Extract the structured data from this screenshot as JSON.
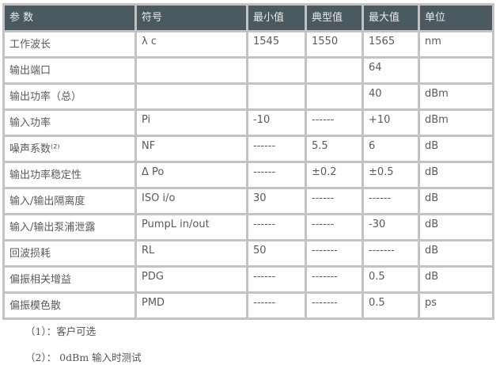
{
  "table": {
    "headers": [
      "参 数",
      "符号",
      "最小值",
      "典型值",
      "最大值",
      "单位"
    ],
    "header_bg": "#4b5960",
    "rows": [
      [
        "工作波长",
        "λ c",
        "1545",
        "1550",
        "1565",
        "nm"
      ],
      [
        "输出端口",
        "",
        "",
        "",
        "64",
        ""
      ],
      [
        "输出功率（总）",
        "",
        "",
        "",
        "40",
        "dBm"
      ],
      [
        "输入功率",
        "Pi",
        "-10",
        "------",
        "+10",
        "dBm"
      ],
      [
        "噪声系数⁽²⁾",
        "NF",
        "------",
        "5.5",
        "6",
        "dB"
      ],
      [
        "输出功率稳定性",
        "Δ Po",
        "------",
        "±0.2",
        "±0.5",
        "dB"
      ],
      [
        "输入/输出隔离度",
        "ISO i/o",
        "30",
        "------",
        "------",
        "dB"
      ],
      [
        "输入/输出泵浦泄露",
        "PumpL in/out",
        "------",
        "------",
        "-30",
        "dB"
      ],
      [
        "回波损耗",
        "RL",
        "50",
        "-------",
        "-------",
        "dB"
      ],
      [
        "偏振相关增益",
        "PDG",
        "------",
        "-------",
        "0.5",
        "dB"
      ],
      [
        "偏振模色散",
        "PMD",
        "------",
        "-------",
        "0.5",
        "ps"
      ]
    ]
  },
  "notes": [
    "（1）：客户可选",
    "（2）： 0dBm 输入时测试"
  ]
}
